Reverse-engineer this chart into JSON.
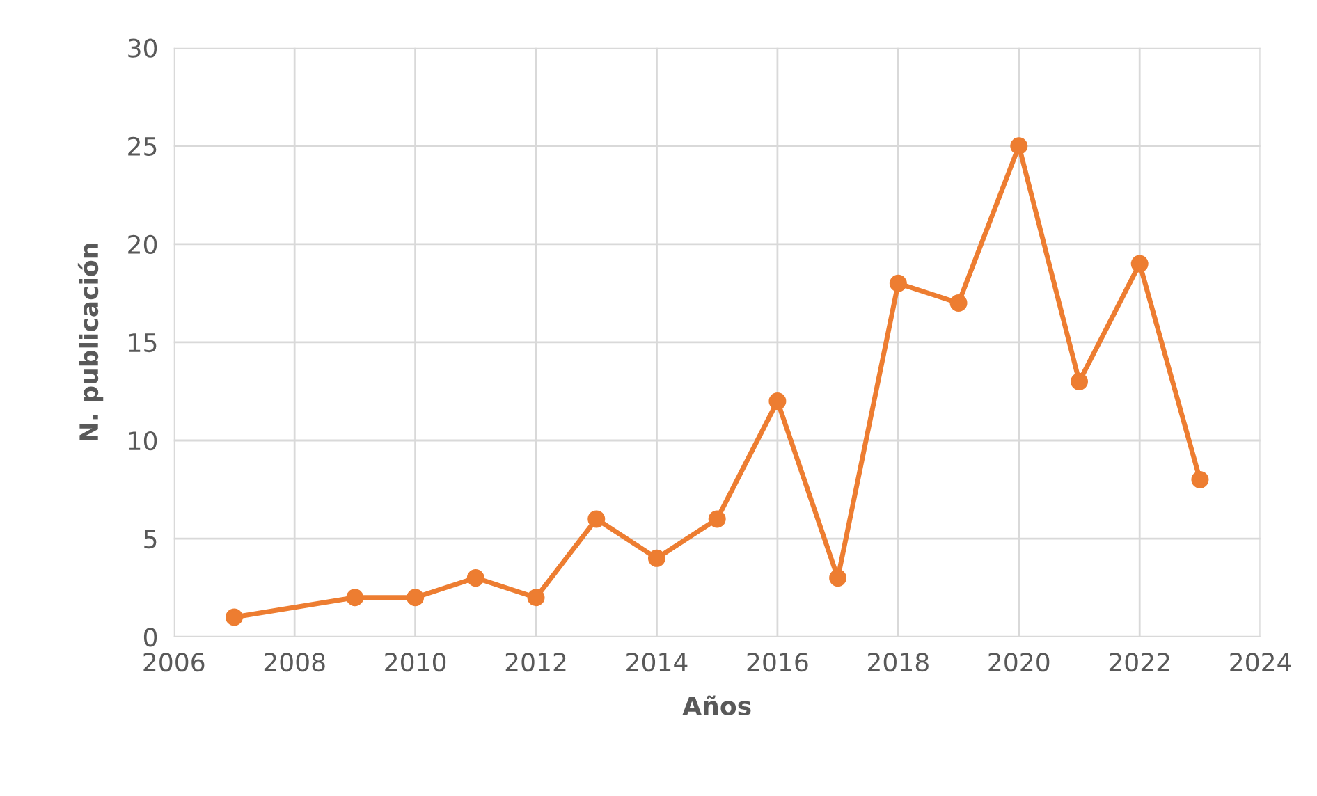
{
  "chart_data": {
    "type": "line",
    "xlabel": "Años",
    "ylabel": "N. publicación",
    "x": [
      2007,
      2009,
      2010,
      2011,
      2012,
      2013,
      2014,
      2015,
      2016,
      2017,
      2018,
      2019,
      2020,
      2021,
      2022,
      2023
    ],
    "series": [
      {
        "color": "#ed7d31",
        "values": [
          1,
          2,
          2,
          3,
          2,
          6,
          4,
          6,
          12,
          3,
          18,
          17,
          25,
          13,
          19,
          8
        ]
      }
    ],
    "xlim": [
      2006,
      2024
    ],
    "xticks": [
      2006,
      2008,
      2010,
      2012,
      2014,
      2016,
      2018,
      2020,
      2022,
      2024
    ],
    "ylim": [
      0,
      30
    ],
    "yticks": [
      0,
      5,
      10,
      15,
      20,
      25,
      30
    ],
    "grid": true,
    "marker": "circle",
    "line_style": "solid"
  }
}
